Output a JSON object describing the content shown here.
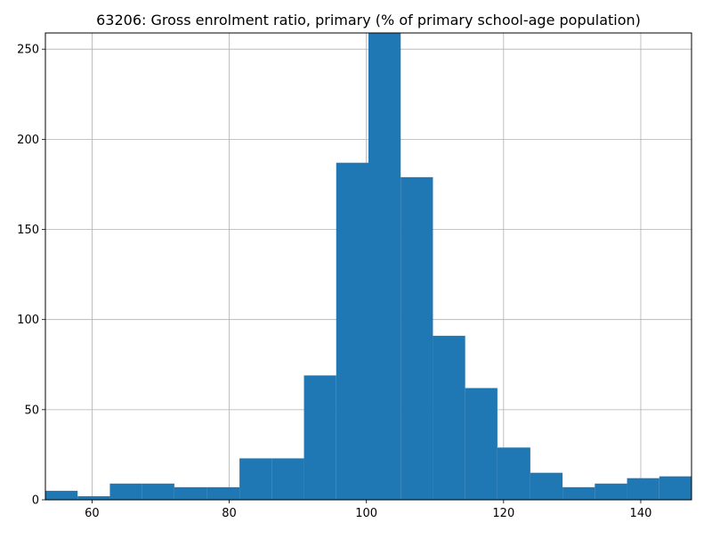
{
  "chart_data": {
    "type": "bar",
    "title": "63206: Gross enrolment ratio, primary (% of primary school-age population)",
    "xlabel": "",
    "ylabel": "",
    "xlim": [
      53.2,
      147.4
    ],
    "ylim": [
      0,
      259
    ],
    "grid": true,
    "color": "#1f77b4",
    "x_ticks": [
      60,
      80,
      100,
      120,
      140
    ],
    "y_ticks": [
      0,
      50,
      100,
      150,
      200,
      250
    ],
    "bins": [
      {
        "x0": 53.2,
        "x1": 57.9,
        "value": 5
      },
      {
        "x0": 57.9,
        "x1": 62.6,
        "value": 2
      },
      {
        "x0": 62.6,
        "x1": 67.3,
        "value": 9
      },
      {
        "x0": 67.3,
        "x1": 72.0,
        "value": 9
      },
      {
        "x0": 72.0,
        "x1": 76.7,
        "value": 7
      },
      {
        "x0": 76.7,
        "x1": 81.5,
        "value": 7
      },
      {
        "x0": 81.5,
        "x1": 86.2,
        "value": 23
      },
      {
        "x0": 86.2,
        "x1": 90.9,
        "value": 23
      },
      {
        "x0": 90.9,
        "x1": 95.6,
        "value": 69
      },
      {
        "x0": 95.6,
        "x1": 100.3,
        "value": 187
      },
      {
        "x0": 100.3,
        "x1": 105.0,
        "value": 259
      },
      {
        "x0": 105.0,
        "x1": 109.7,
        "value": 179
      },
      {
        "x0": 109.7,
        "x1": 114.4,
        "value": 91
      },
      {
        "x0": 114.4,
        "x1": 119.1,
        "value": 62
      },
      {
        "x0": 119.1,
        "x1": 123.9,
        "value": 29
      },
      {
        "x0": 123.9,
        "x1": 128.6,
        "value": 15
      },
      {
        "x0": 128.6,
        "x1": 133.3,
        "value": 7
      },
      {
        "x0": 133.3,
        "x1": 138.0,
        "value": 9
      },
      {
        "x0": 138.0,
        "x1": 142.7,
        "value": 12
      },
      {
        "x0": 142.7,
        "x1": 147.4,
        "value": 13
      }
    ]
  }
}
